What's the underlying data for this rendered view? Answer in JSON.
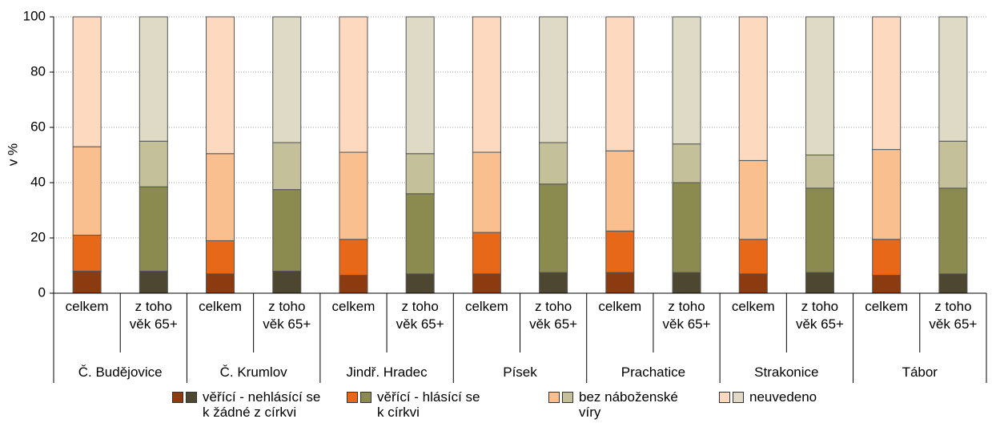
{
  "chart_data": {
    "type": "bar",
    "stacked": true,
    "ylabel": "v %",
    "groups": [
      "Č. Budějovice",
      "Č. Krumlov",
      "Jindř. Hradec",
      "Písek",
      "Prachatice",
      "Strakonice",
      "Tábor"
    ],
    "subcategories": [
      "celkem",
      "z toho věk 65+"
    ],
    "series": [
      {
        "name": "věřící - nehlásící se k žádné z církvi",
        "colors": [
          "#8c3a10",
          "#4d4630"
        ],
        "values": [
          8,
          8,
          7,
          8,
          6.5,
          7,
          7,
          7.5,
          7.5,
          7.5,
          7,
          7.5,
          6.5,
          7
        ]
      },
      {
        "name": "věřící - hlásící se k církvi",
        "colors": [
          "#e8681a",
          "#8b8a4f"
        ],
        "values": [
          13,
          30.5,
          12,
          29.5,
          13,
          29,
          15,
          32,
          15,
          32.5,
          12.5,
          30.5,
          13,
          31
        ]
      },
      {
        "name": "bez náboženské víry",
        "colors": [
          "#f9bf8f",
          "#c4c09a"
        ],
        "values": [
          32,
          16.5,
          31.5,
          17,
          31.5,
          14.5,
          29,
          15,
          29,
          14,
          28.5,
          12,
          32.5,
          17
        ]
      },
      {
        "name": "neuvedeno",
        "colors": [
          "#fcd9bf",
          "#dedac5"
        ],
        "values": [
          47,
          45,
          49.5,
          45.5,
          49,
          49.5,
          49,
          45.5,
          48.5,
          46,
          52,
          50,
          48,
          45
        ]
      }
    ],
    "ylim": [
      0,
      100
    ],
    "yticks": [
      0,
      20,
      40,
      60,
      80,
      100
    ],
    "grid": true
  }
}
